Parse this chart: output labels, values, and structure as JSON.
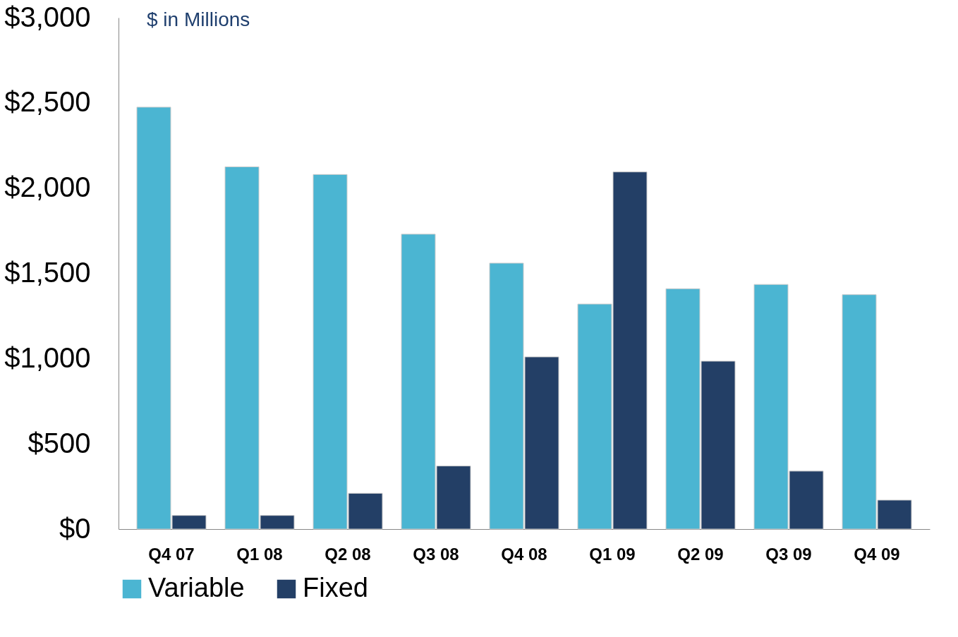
{
  "chart_data": {
    "type": "bar",
    "categories": [
      "Q4 07",
      "Q1 08",
      "Q2 08",
      "Q3 08",
      "Q4 08",
      "Q1 09",
      "Q2 09",
      "Q3 09",
      "Q4 09"
    ],
    "series": [
      {
        "name": "Variable",
        "color": "#4bb5d2",
        "values": [
          2475,
          2125,
          2080,
          1730,
          1560,
          1320,
          1410,
          1435,
          1375
        ]
      },
      {
        "name": "Fixed",
        "color": "#233f66",
        "values": [
          80,
          80,
          210,
          370,
          1010,
          2095,
          985,
          340,
          170
        ]
      }
    ],
    "ylim": [
      0,
      3000
    ],
    "yticks": [
      {
        "value": 0,
        "label": "$0"
      },
      {
        "value": 500,
        "label": "$500"
      },
      {
        "value": 1000,
        "label": "$1,000"
      },
      {
        "value": 1500,
        "label": "$1,500"
      },
      {
        "value": 2000,
        "label": "$2,000"
      },
      {
        "value": 2500,
        "label": "$2,500"
      },
      {
        "value": 3000,
        "label": "$3,000"
      }
    ],
    "annotations": [
      "$ in Millions"
    ],
    "legend": "bottom",
    "grid": false
  }
}
